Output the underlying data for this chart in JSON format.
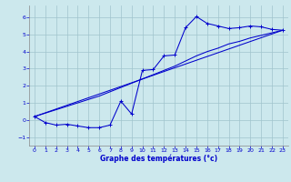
{
  "xlabel": "Graphe des températures (°c)",
  "bg_color": "#cce8ed",
  "grid_color": "#a0c4cc",
  "line_color": "#0000cc",
  "xlim": [
    -0.5,
    23.5
  ],
  "ylim": [
    -1.5,
    6.7
  ],
  "xticks": [
    0,
    1,
    2,
    3,
    4,
    5,
    6,
    7,
    8,
    9,
    10,
    11,
    12,
    13,
    14,
    15,
    16,
    17,
    18,
    19,
    20,
    21,
    22,
    23
  ],
  "yticks": [
    -1,
    0,
    1,
    2,
    3,
    4,
    5,
    6
  ],
  "series1_x": [
    0,
    1,
    2,
    3,
    4,
    5,
    6,
    7,
    8,
    9,
    10,
    11,
    12,
    13,
    14,
    15,
    16,
    17,
    18,
    19,
    20,
    21,
    22,
    23
  ],
  "series1_y": [
    0.2,
    -0.15,
    -0.3,
    -0.25,
    -0.35,
    -0.45,
    -0.45,
    -0.3,
    1.1,
    0.35,
    2.9,
    2.95,
    3.75,
    3.8,
    5.4,
    6.05,
    5.65,
    5.5,
    5.35,
    5.4,
    5.5,
    5.45,
    5.3,
    5.25
  ],
  "series2_x": [
    0,
    23
  ],
  "series2_y": [
    0.2,
    5.25
  ],
  "series3_x": [
    0,
    1,
    2,
    3,
    4,
    5,
    6,
    7,
    8,
    9,
    10,
    11,
    12,
    13,
    14,
    15,
    16,
    17,
    18,
    19,
    20,
    21,
    22,
    23
  ],
  "series3_y": [
    0.2,
    0.4,
    0.6,
    0.8,
    1.0,
    1.2,
    1.4,
    1.65,
    1.9,
    2.15,
    2.4,
    2.65,
    2.9,
    3.15,
    3.45,
    3.75,
    4.0,
    4.2,
    4.45,
    4.6,
    4.8,
    4.95,
    5.1,
    5.25
  ]
}
